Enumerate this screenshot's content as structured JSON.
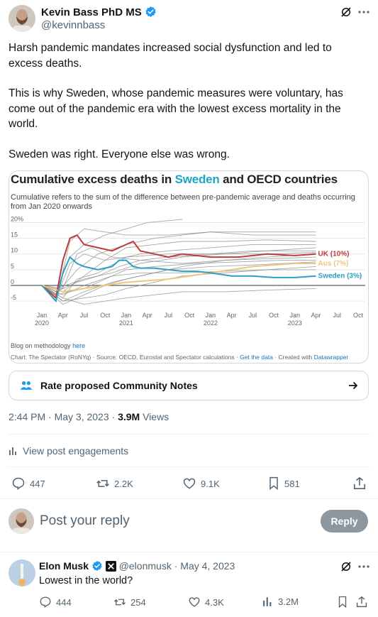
{
  "post": {
    "author_name": "Kevin Bass PhD MS",
    "author_handle": "@kevinnbass",
    "text_p1": "Harsh pandemic mandates increased social dysfunction and led to excess deaths.",
    "text_p2": "This is why Sweden, whose pandemic measures were voluntary, has come out of the pandemic era with the lowest excess mortality in the world.",
    "text_p3": "Sweden was right. Everyone else was wrong.",
    "timestamp": "2:44 PM · May 3, 2023 · ",
    "views_count": "3.9M",
    "views_label": " Views",
    "engagements_label": "View post engagements",
    "replies": "447",
    "reposts": "2.2K",
    "likes": "9.1K",
    "bookmarks": "581"
  },
  "chart": {
    "title_prefix": "Cumulative excess deaths in ",
    "title_accent": "Sweden",
    "title_suffix": " and OECD countries",
    "subtitle": "Cumulative refers to the sum of the difference between pre-pandemic average and deaths occurring from Jan 2020 onwards",
    "methodology_prefix": "Blog on methodology ",
    "methodology_link": "here",
    "source_text": "Chart: The Spectator (RoNYq) · Source: OECD, Eurostat and Spectator calculations · ",
    "source_link": "Get the data",
    "source_mid": " · Created with ",
    "source_link2": "Datawrapper",
    "colors": {
      "uk": "#c0393b",
      "aus": "#f0c47a",
      "sweden": "#2f9fc4",
      "others": "#8a8a8a"
    }
  },
  "chart_data": {
    "type": "line",
    "title": "Cumulative excess deaths in Sweden and OECD countries",
    "subtitle": "Cumulative refers to the sum of the difference between pre-pandemic average and deaths occurring from Jan 2020 onwards",
    "ylim": [
      -7,
      21
    ],
    "y_ticks": [
      "20%",
      "15",
      "10",
      "5",
      "0",
      "-5"
    ],
    "x_ticks": [
      "Jan 2020",
      "Apr",
      "Jul",
      "Oct",
      "Jan 2021",
      "Apr",
      "Jul",
      "Oct",
      "Jan 2022",
      "Apr",
      "Jul",
      "Oct",
      "Jan 2023",
      "Apr",
      "Jul",
      "Oct"
    ],
    "x_tick_lines": [
      [
        "Jan",
        "2020"
      ],
      [
        "Apr",
        ""
      ],
      [
        "Jul",
        ""
      ],
      [
        "Oct",
        ""
      ],
      [
        "Jan",
        "2021"
      ],
      [
        "Apr",
        ""
      ],
      [
        "Jul",
        ""
      ],
      [
        "Oct",
        ""
      ],
      [
        "Jan",
        "2022"
      ],
      [
        "Apr",
        ""
      ],
      [
        "Jul",
        ""
      ],
      [
        "Oct",
        ""
      ],
      [
        "Jan",
        "2023"
      ],
      [
        "Apr",
        ""
      ],
      [
        "Jul",
        ""
      ],
      [
        "Oct",
        ""
      ]
    ],
    "x_months_total": 45,
    "series": [
      {
        "name": "UK (10%)",
        "highlight": "uk",
        "months": [
          0,
          2,
          3,
          4,
          5,
          6,
          8,
          10,
          12,
          13,
          14,
          16,
          18,
          20,
          24,
          28,
          32,
          36,
          39
        ],
        "values": [
          0,
          -4,
          8,
          15,
          16,
          13,
          12,
          11,
          13,
          14,
          11,
          10,
          9,
          10,
          9,
          9,
          10,
          9.5,
          10
        ]
      },
      {
        "name": "Aus (7%)",
        "highlight": "aus",
        "months": [
          0,
          3,
          6,
          9,
          12,
          15,
          18,
          21,
          24,
          27,
          30,
          33,
          36,
          39
        ],
        "values": [
          0,
          -2,
          -1,
          0,
          1,
          1.5,
          2,
          3,
          4,
          5,
          6,
          6.5,
          7,
          7
        ]
      },
      {
        "name": "Sweden (3%)",
        "highlight": "sweden",
        "months": [
          0,
          2,
          3,
          4,
          5,
          6,
          8,
          10,
          11,
          12,
          13,
          14,
          16,
          18,
          20,
          22,
          24,
          27,
          30,
          33,
          36,
          39
        ],
        "values": [
          0,
          -5,
          4,
          9,
          7,
          6,
          5,
          6,
          8,
          8,
          6,
          5.5,
          5.5,
          5,
          4.5,
          4.5,
          4,
          3,
          3,
          2.5,
          2.5,
          3
        ]
      }
    ],
    "background_series": [
      [
        [
          0,
          0
        ],
        [
          2,
          -5
        ],
        [
          4,
          14
        ],
        [
          6,
          18
        ],
        [
          9,
          17
        ],
        [
          12,
          16
        ],
        [
          18,
          16
        ],
        [
          24,
          17
        ],
        [
          30,
          16
        ],
        [
          39,
          16
        ]
      ],
      [
        [
          0,
          0
        ],
        [
          2,
          -3
        ],
        [
          5,
          5
        ],
        [
          8,
          10
        ],
        [
          12,
          13
        ],
        [
          16,
          15
        ],
        [
          20,
          16
        ],
        [
          24,
          17
        ],
        [
          30,
          17
        ],
        [
          39,
          17
        ]
      ],
      [
        [
          0,
          0
        ],
        [
          3,
          -2
        ],
        [
          6,
          3
        ],
        [
          9,
          8
        ],
        [
          12,
          12
        ],
        [
          16,
          13
        ],
        [
          20,
          14
        ],
        [
          26,
          14
        ],
        [
          32,
          14.5
        ],
        [
          39,
          14
        ]
      ],
      [
        [
          0,
          0
        ],
        [
          3,
          -4
        ],
        [
          5,
          2
        ],
        [
          8,
          4
        ],
        [
          12,
          9
        ],
        [
          14,
          10
        ],
        [
          18,
          11
        ],
        [
          24,
          12
        ],
        [
          30,
          13
        ],
        [
          39,
          13
        ]
      ],
      [
        [
          0,
          0
        ],
        [
          2,
          -2
        ],
        [
          5,
          1
        ],
        [
          8,
          3
        ],
        [
          11,
          6
        ],
        [
          14,
          8
        ],
        [
          18,
          9
        ],
        [
          24,
          10
        ],
        [
          30,
          11
        ],
        [
          39,
          11
        ]
      ],
      [
        [
          0,
          0
        ],
        [
          3,
          -6
        ],
        [
          6,
          -3
        ],
        [
          9,
          0
        ],
        [
          12,
          2
        ],
        [
          16,
          4
        ],
        [
          20,
          6
        ],
        [
          26,
          8
        ],
        [
          32,
          9
        ],
        [
          39,
          10
        ]
      ],
      [
        [
          0,
          0
        ],
        [
          2,
          -3
        ],
        [
          6,
          -1
        ],
        [
          9,
          2
        ],
        [
          12,
          5
        ],
        [
          16,
          6
        ],
        [
          22,
          7
        ],
        [
          28,
          7.5
        ],
        [
          34,
          8
        ],
        [
          39,
          8
        ]
      ],
      [
        [
          0,
          0
        ],
        [
          3,
          -5
        ],
        [
          6,
          -2
        ],
        [
          10,
          1
        ],
        [
          14,
          3
        ],
        [
          18,
          5
        ],
        [
          24,
          6
        ],
        [
          30,
          6.5
        ],
        [
          39,
          7.5
        ]
      ],
      [
        [
          0,
          0
        ],
        [
          3,
          -1
        ],
        [
          5,
          10
        ],
        [
          7,
          12
        ],
        [
          10,
          9
        ],
        [
          14,
          8
        ],
        [
          20,
          7
        ],
        [
          26,
          8
        ],
        [
          32,
          8.5
        ],
        [
          39,
          9
        ]
      ],
      [
        [
          0,
          0
        ],
        [
          2,
          -4
        ],
        [
          4,
          7
        ],
        [
          6,
          10
        ],
        [
          9,
          8
        ],
        [
          12,
          9
        ],
        [
          18,
          10
        ],
        [
          24,
          10
        ],
        [
          32,
          10
        ],
        [
          39,
          10.5
        ]
      ],
      [
        [
          0,
          0
        ],
        [
          3,
          -5
        ],
        [
          6,
          -4
        ],
        [
          9,
          -3
        ],
        [
          12,
          -1
        ],
        [
          16,
          1
        ],
        [
          20,
          3
        ],
        [
          26,
          4
        ],
        [
          32,
          5
        ],
        [
          39,
          5
        ]
      ],
      [
        [
          0,
          0
        ],
        [
          3,
          -3
        ],
        [
          6,
          0
        ],
        [
          10,
          3
        ],
        [
          14,
          4
        ],
        [
          20,
          4
        ],
        [
          26,
          4.5
        ],
        [
          32,
          5
        ],
        [
          39,
          6
        ]
      ],
      [
        [
          0,
          0
        ],
        [
          2,
          -2
        ],
        [
          4,
          9
        ],
        [
          6,
          13
        ],
        [
          9,
          16
        ],
        [
          12,
          18
        ],
        [
          15,
          20
        ],
        [
          20,
          21
        ]
      ],
      [
        [
          0,
          0
        ],
        [
          3,
          -4
        ],
        [
          6,
          -6
        ],
        [
          9,
          -5
        ],
        [
          12,
          -4
        ],
        [
          16,
          -3
        ],
        [
          20,
          -2
        ],
        [
          26,
          -2
        ],
        [
          32,
          -1.5
        ],
        [
          39,
          -1
        ]
      ],
      [
        [
          0,
          0
        ],
        [
          2,
          -1
        ],
        [
          6,
          2
        ],
        [
          10,
          4
        ],
        [
          14,
          7
        ],
        [
          20,
          9
        ],
        [
          26,
          10
        ],
        [
          32,
          11
        ],
        [
          39,
          12
        ]
      ]
    ]
  },
  "community_notes": {
    "label": "Rate proposed Community Notes"
  },
  "composer": {
    "placeholder": "Post your reply",
    "reply_label": "Reply"
  },
  "reply": {
    "author_name": "Elon Musk",
    "author_handle": "@elonmusk",
    "date": "May 4, 2023",
    "sep": "·",
    "text": "Lowest in the world?",
    "replies": "444",
    "reposts": "254",
    "likes": "4.3K",
    "views": "3.2M"
  }
}
